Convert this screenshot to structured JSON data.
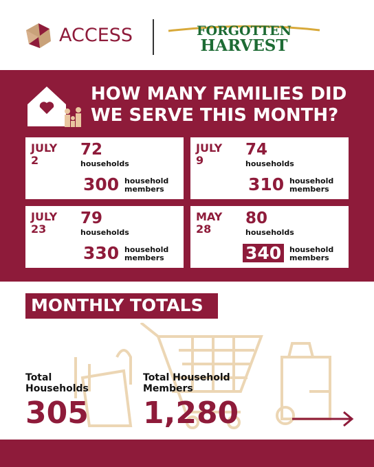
{
  "header": {
    "logo_left": "ACCESS",
    "logo_right": [
      "FORGOTTEN",
      "HARVEST"
    ]
  },
  "title": [
    "HOW MANY FAMILIES DID",
    "WE SERVE THIS MONTH?"
  ],
  "cards": [
    {
      "date": [
        "JULY",
        "2"
      ],
      "households": 72,
      "households_label": "households",
      "members": 300,
      "members_label": [
        "household",
        "members"
      ]
    },
    {
      "date": [
        "JULY",
        "9"
      ],
      "households": 74,
      "households_label": "households",
      "members": 310,
      "members_label": [
        "household",
        "members"
      ]
    },
    {
      "date": [
        "JULY",
        "23"
      ],
      "households": 79,
      "households_label": "households",
      "members": 330,
      "members_label": [
        "household",
        "members"
      ]
    },
    {
      "date": [
        "MAY",
        "28"
      ],
      "households": 80,
      "households_label": "households",
      "members": 340,
      "members_label": [
        "household",
        "members"
      ]
    }
  ],
  "totals": {
    "heading": "MONTHLY TOTALS",
    "households_label": [
      "Total",
      "Households"
    ],
    "households": 305,
    "members_label": [
      "Total Household",
      "Members"
    ],
    "members": "1,280"
  }
}
